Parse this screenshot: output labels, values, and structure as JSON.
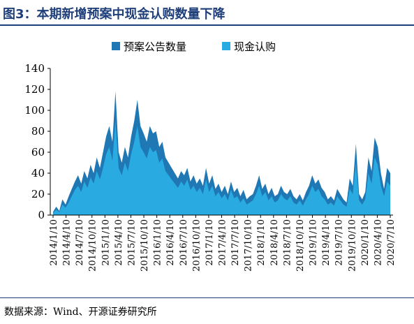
{
  "header": {
    "title": "图3：本期新增预案中现金认购数量下降"
  },
  "footer": {
    "source": "数据来源：Wind、开源证券研究所"
  },
  "colors": {
    "title": "#1f3f7a",
    "series_total": "#1f77b4",
    "series_cash": "#29abe2"
  },
  "chart_data": {
    "type": "area",
    "title": "",
    "xlabel": "",
    "ylabel": "",
    "ylim": [
      0,
      140
    ],
    "yticks": [
      0,
      20,
      40,
      60,
      80,
      100,
      120,
      140
    ],
    "grid": false,
    "legend": "top-center",
    "x_tick_labels": [
      "2014/1/10",
      "2014/4/10",
      "2014/7/10",
      "2014/10/10",
      "2015/1/10",
      "2015/4/10",
      "2015/7/10",
      "2015/10/10",
      "2016/1/10",
      "2016/4/10",
      "2016/7/10",
      "2016/10/10",
      "2017/1/10",
      "2017/4/10",
      "2017/7/10",
      "2017/10/10",
      "2018/1/10",
      "2018/4/10",
      "2018/7/10",
      "2018/10/10",
      "2019/1/10",
      "2019/4/10",
      "2019/7/10",
      "2019/10/10",
      "2020/1/10",
      "2020/4/10",
      "2020/7/10"
    ],
    "series": [
      {
        "name": "预案公告数量",
        "values": [
          3,
          8,
          4,
          15,
          10,
          18,
          25,
          32,
          38,
          30,
          42,
          35,
          48,
          40,
          55,
          45,
          60,
          75,
          85,
          70,
          118,
          60,
          50,
          65,
          55,
          75,
          90,
          110,
          85,
          78,
          70,
          85,
          78,
          80,
          65,
          70,
          55,
          50,
          45,
          40,
          35,
          42,
          38,
          45,
          32,
          38,
          30,
          35,
          28,
          45,
          30,
          38,
          25,
          30,
          22,
          28,
          20,
          32,
          22,
          26,
          18,
          24,
          15,
          18,
          20,
          28,
          38,
          25,
          30,
          20,
          26,
          18,
          20,
          28,
          22,
          20,
          25,
          18,
          15,
          20,
          14,
          22,
          28,
          38,
          30,
          34,
          26,
          22,
          15,
          18,
          14,
          25,
          20,
          15,
          12,
          35,
          28,
          68,
          20,
          15,
          22,
          55,
          42,
          74,
          65,
          40,
          25,
          45,
          40
        ]
      },
      {
        "name": "现金认购",
        "values": [
          2,
          5,
          3,
          10,
          7,
          12,
          18,
          24,
          28,
          22,
          32,
          26,
          36,
          30,
          42,
          34,
          45,
          58,
          65,
          52,
          90,
          45,
          38,
          50,
          42,
          58,
          70,
          85,
          65,
          60,
          54,
          65,
          60,
          62,
          50,
          54,
          42,
          38,
          34,
          30,
          26,
          32,
          28,
          34,
          24,
          28,
          22,
          26,
          20,
          34,
          22,
          28,
          18,
          22,
          16,
          20,
          14,
          24,
          16,
          18,
          12,
          16,
          10,
          12,
          14,
          20,
          28,
          18,
          22,
          14,
          18,
          12,
          14,
          20,
          16,
          14,
          18,
          12,
          10,
          14,
          9,
          15,
          20,
          28,
          22,
          25,
          18,
          15,
          10,
          12,
          9,
          18,
          14,
          10,
          8,
          25,
          20,
          50,
          14,
          10,
          15,
          40,
          30,
          55,
          48,
          28,
          18,
          32,
          28
        ]
      }
    ]
  }
}
